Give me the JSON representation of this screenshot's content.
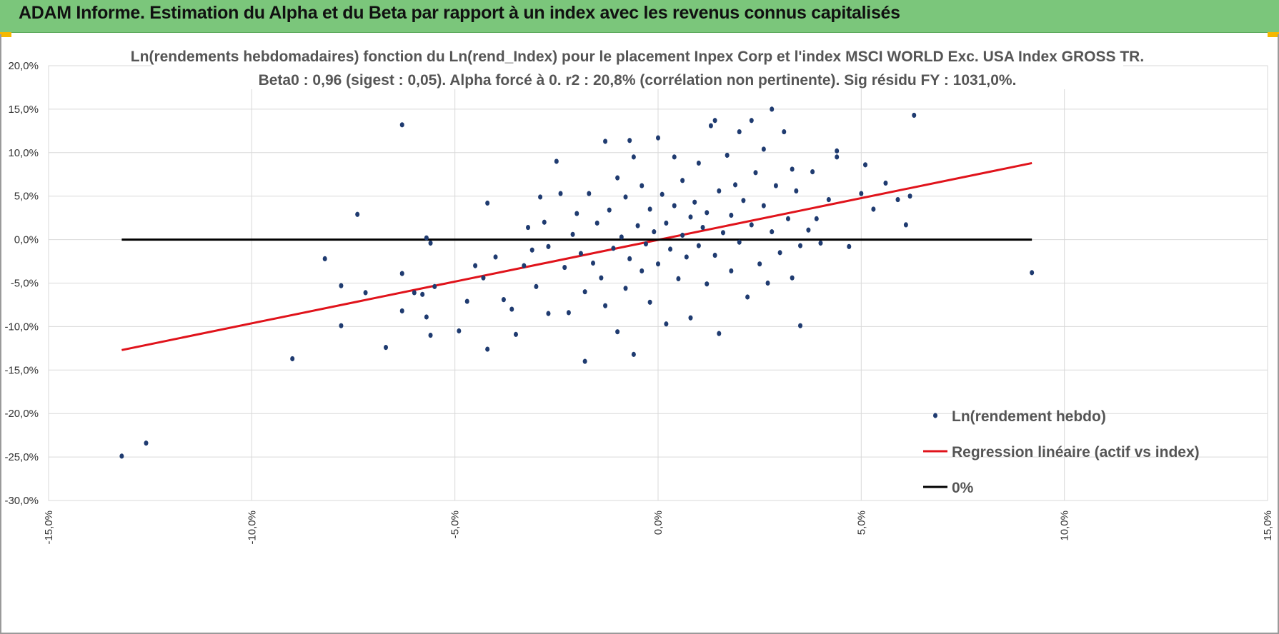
{
  "header": {
    "title": "ADAM Informe. Estimation du Alpha et du Beta par rapport à un index avec les revenus connus capitalisés",
    "background_color": "#7bc67b"
  },
  "chart_data": {
    "type": "scatter",
    "title": "Ln(rendements hebdomadaires) fonction du Ln(rend_Index) pour le placement Inpex Corp et l'index MSCI WORLD Exc. USA Index GROSS TR.",
    "subtitle": "Beta0 : 0,96 (sigest : 0,05).  Alpha forcé à 0. r2 : 20,8% (corrélation non pertinente). Sig résidu FY : 1031,0%.",
    "xlabel": "",
    "ylabel": "",
    "xlim": [
      -15,
      15
    ],
    "ylim": [
      -30,
      20
    ],
    "x_ticks": [
      -15,
      -10,
      -5,
      0,
      5,
      10,
      15
    ],
    "y_ticks": [
      20,
      15,
      10,
      5,
      0,
      -5,
      -10,
      -15,
      -20,
      -25,
      -30
    ],
    "x_tick_labels": [
      "-15,0%",
      "-10,0%",
      "-5,0%",
      "0,0%",
      "5,0%",
      "10,0%",
      "15,0%"
    ],
    "y_tick_labels": [
      "20,0%",
      "15,0%",
      "10,0%",
      "5,0%",
      "0,0%",
      "-5,0%",
      "-10,0%",
      "-15,0%",
      "-20,0%",
      "-25,0%",
      "-30,0%"
    ],
    "grid": true,
    "legend_position": "bottom-right",
    "series": [
      {
        "name": "Ln(rendement hebdo)",
        "kind": "scatter",
        "color": "#1f3b70",
        "points": [
          [
            -13.2,
            -24.9
          ],
          [
            -12.6,
            -23.4
          ],
          [
            -9.0,
            -13.7
          ],
          [
            -8.2,
            -2.2
          ],
          [
            -7.8,
            -9.9
          ],
          [
            -7.8,
            -5.3
          ],
          [
            -7.4,
            2.9
          ],
          [
            -7.2,
            -6.1
          ],
          [
            -6.7,
            -12.4
          ],
          [
            -6.3,
            13.2
          ],
          [
            -6.3,
            -3.9
          ],
          [
            -6.3,
            -8.2
          ],
          [
            -6.0,
            -6.1
          ],
          [
            -5.8,
            -6.3
          ],
          [
            -5.7,
            -8.9
          ],
          [
            -5.7,
            0.2
          ],
          [
            -5.6,
            -0.4
          ],
          [
            -5.5,
            -5.4
          ],
          [
            -5.6,
            -11.0
          ],
          [
            -4.9,
            -10.5
          ],
          [
            -4.7,
            -7.1
          ],
          [
            -4.5,
            -3.0
          ],
          [
            -4.3,
            -4.4
          ],
          [
            -4.2,
            -12.6
          ],
          [
            -4.2,
            4.2
          ],
          [
            -4.0,
            -2.0
          ],
          [
            -3.8,
            -6.9
          ],
          [
            -3.6,
            -8.0
          ],
          [
            -3.5,
            -10.9
          ],
          [
            -3.3,
            -3.0
          ],
          [
            -3.2,
            1.4
          ],
          [
            -3.1,
            -1.2
          ],
          [
            -3.0,
            -5.4
          ],
          [
            -2.9,
            4.9
          ],
          [
            -2.8,
            2.0
          ],
          [
            -2.7,
            -8.5
          ],
          [
            -2.7,
            -0.8
          ],
          [
            -2.5,
            9.0
          ],
          [
            -2.4,
            5.3
          ],
          [
            -2.3,
            -3.2
          ],
          [
            -2.2,
            -8.4
          ],
          [
            -2.1,
            0.6
          ],
          [
            -2.0,
            3.0
          ],
          [
            -1.9,
            -1.6
          ],
          [
            -1.8,
            -14.0
          ],
          [
            -1.8,
            -6.0
          ],
          [
            -1.7,
            5.3
          ],
          [
            -1.6,
            -2.7
          ],
          [
            -1.5,
            1.9
          ],
          [
            -1.4,
            -4.4
          ],
          [
            -1.3,
            11.3
          ],
          [
            -1.3,
            -7.6
          ],
          [
            -1.2,
            3.4
          ],
          [
            -1.1,
            -1.0
          ],
          [
            -1.0,
            7.1
          ],
          [
            -1.0,
            -10.6
          ],
          [
            -0.9,
            0.3
          ],
          [
            -0.8,
            -5.6
          ],
          [
            -0.8,
            4.9
          ],
          [
            -0.7,
            11.4
          ],
          [
            -0.7,
            -2.2
          ],
          [
            -0.6,
            9.5
          ],
          [
            -0.6,
            -13.2
          ],
          [
            -0.5,
            1.6
          ],
          [
            -0.4,
            -3.6
          ],
          [
            -0.4,
            6.2
          ],
          [
            -0.3,
            -0.5
          ],
          [
            -0.2,
            -7.2
          ],
          [
            -0.2,
            3.5
          ],
          [
            -0.1,
            0.9
          ],
          [
            0.0,
            -2.8
          ],
          [
            0.0,
            11.7
          ],
          [
            0.1,
            5.2
          ],
          [
            0.2,
            -9.7
          ],
          [
            0.2,
            1.9
          ],
          [
            0.3,
            -1.1
          ],
          [
            0.4,
            9.5
          ],
          [
            0.4,
            3.9
          ],
          [
            0.5,
            -4.5
          ],
          [
            0.6,
            0.5
          ],
          [
            0.6,
            6.8
          ],
          [
            0.7,
            -2.0
          ],
          [
            0.8,
            2.6
          ],
          [
            0.8,
            -9.0
          ],
          [
            0.9,
            4.3
          ],
          [
            1.0,
            -0.7
          ],
          [
            1.0,
            8.8
          ],
          [
            1.1,
            1.4
          ],
          [
            1.2,
            -5.1
          ],
          [
            1.2,
            3.1
          ],
          [
            1.3,
            13.1
          ],
          [
            1.4,
            13.7
          ],
          [
            1.4,
            -1.8
          ],
          [
            1.5,
            5.6
          ],
          [
            1.5,
            -10.8
          ],
          [
            1.6,
            0.8
          ],
          [
            1.7,
            9.7
          ],
          [
            1.8,
            2.8
          ],
          [
            1.8,
            -3.6
          ],
          [
            1.9,
            6.3
          ],
          [
            2.0,
            12.4
          ],
          [
            2.0,
            -0.3
          ],
          [
            2.1,
            4.5
          ],
          [
            2.2,
            -6.6
          ],
          [
            2.3,
            1.7
          ],
          [
            2.3,
            13.7
          ],
          [
            2.4,
            7.7
          ],
          [
            2.5,
            -2.8
          ],
          [
            2.6,
            3.9
          ],
          [
            2.6,
            10.4
          ],
          [
            2.7,
            -5.0
          ],
          [
            2.8,
            0.9
          ],
          [
            2.8,
            15.0
          ],
          [
            2.9,
            6.2
          ],
          [
            3.0,
            -1.5
          ],
          [
            3.1,
            12.4
          ],
          [
            3.2,
            2.4
          ],
          [
            3.3,
            8.1
          ],
          [
            3.3,
            -4.4
          ],
          [
            3.4,
            5.6
          ],
          [
            3.5,
            -0.7
          ],
          [
            3.5,
            -9.9
          ],
          [
            3.7,
            1.1
          ],
          [
            3.8,
            7.8
          ],
          [
            3.9,
            2.4
          ],
          [
            4.0,
            -0.4
          ],
          [
            4.2,
            4.6
          ],
          [
            4.4,
            9.5
          ],
          [
            4.4,
            10.2
          ],
          [
            4.7,
            -0.8
          ],
          [
            5.0,
            5.3
          ],
          [
            5.1,
            8.6
          ],
          [
            5.3,
            3.5
          ],
          [
            5.6,
            6.5
          ],
          [
            5.9,
            4.6
          ],
          [
            6.1,
            1.7
          ],
          [
            6.2,
            5.0
          ],
          [
            6.3,
            14.3
          ],
          [
            9.2,
            -3.8
          ]
        ]
      },
      {
        "name": "Regression linéaire (actif vs index)",
        "kind": "line",
        "color": "#e0131b",
        "x": [
          -13.2,
          9.2
        ],
        "y": [
          -12.7,
          8.8
        ]
      },
      {
        "name": "0%",
        "kind": "line",
        "color": "#000000",
        "x": [
          -13.2,
          9.2
        ],
        "y": [
          0,
          0
        ]
      }
    ]
  }
}
